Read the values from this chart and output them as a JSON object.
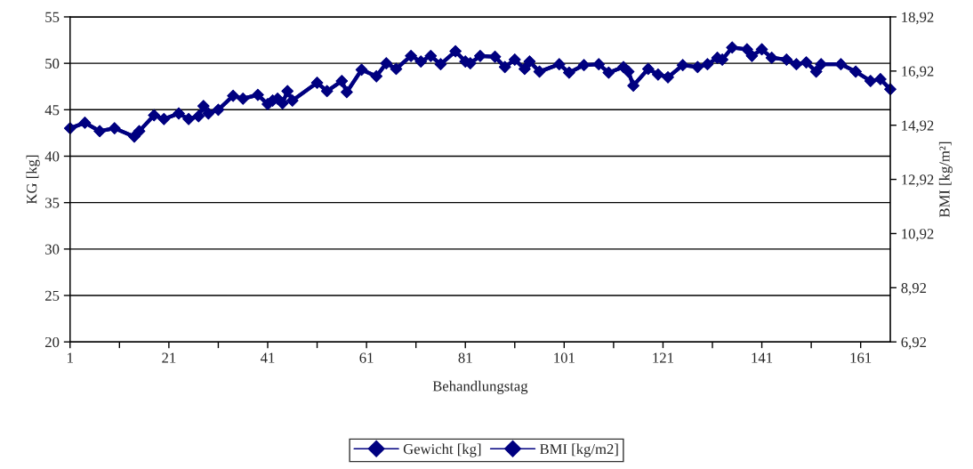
{
  "chart_data": {
    "type": "line",
    "xlabel": "Behandlungstag",
    "ylabel": "KG [kg]",
    "y2label": "BMI [kg/m²]",
    "x": [
      1,
      4,
      7,
      10,
      14,
      15,
      18,
      20,
      23,
      25,
      27,
      28,
      29,
      31,
      34,
      36,
      39,
      41,
      42,
      43,
      44,
      45,
      46,
      51,
      53,
      56,
      57,
      60,
      63,
      65,
      67,
      70,
      72,
      74,
      76,
      79,
      81,
      82,
      84,
      87,
      89,
      91,
      93,
      94,
      96,
      100,
      102,
      105,
      108,
      110,
      113,
      114,
      115,
      118,
      120,
      122,
      125,
      128,
      130,
      132,
      133,
      135,
      138,
      139,
      141,
      143,
      146,
      148,
      150,
      152,
      153,
      157,
      160,
      163,
      165,
      167
    ],
    "series": [
      {
        "name": "Gewicht [kg]",
        "color": "#000080",
        "axis": "y",
        "values": [
          43.0,
          43.6,
          42.7,
          43.0,
          42.1,
          42.7,
          44.4,
          44.0,
          44.6,
          44.0,
          44.3,
          45.4,
          44.6,
          45.0,
          46.5,
          46.2,
          46.6,
          45.6,
          46.0,
          46.2,
          45.7,
          47.0,
          46.0,
          47.9,
          47.0,
          48.1,
          46.9,
          49.3,
          48.6,
          50.0,
          49.4,
          50.8,
          50.2,
          50.8,
          49.9,
          51.3,
          50.2,
          50.0,
          50.8,
          50.7,
          49.6,
          50.4,
          49.4,
          50.2,
          49.1,
          49.9,
          49.0,
          49.8,
          49.9,
          49.0,
          49.6,
          49.1,
          47.6,
          49.4,
          48.8,
          48.5,
          49.8,
          49.6,
          49.9,
          50.6,
          50.4,
          51.7,
          51.5,
          50.8,
          51.5,
          50.6,
          50.4,
          49.9,
          50.1,
          49.1,
          49.9,
          49.9,
          49.1,
          48.1,
          48.3,
          47.2
        ]
      },
      {
        "name": "BMI [kg/m2]",
        "color": "#000080",
        "axis": "y2",
        "values": [
          14.81,
          15.01,
          14.7,
          14.81,
          14.5,
          14.7,
          15.29,
          15.15,
          15.35,
          15.15,
          15.25,
          15.63,
          15.35,
          15.49,
          16.01,
          15.9,
          16.04,
          15.7,
          15.83,
          15.9,
          15.73,
          16.18,
          15.83,
          16.49,
          16.18,
          16.55,
          16.14,
          16.97,
          16.73,
          17.21,
          17.0,
          17.48,
          17.27,
          17.48,
          17.17,
          17.65,
          17.27,
          17.21,
          17.48,
          17.45,
          17.07,
          17.34,
          17.0,
          17.27,
          16.9,
          17.17,
          16.86,
          17.14,
          17.17,
          16.86,
          17.07,
          16.9,
          16.38,
          17.0,
          16.79,
          16.69,
          17.14,
          17.07,
          17.17,
          17.41,
          17.34,
          17.79,
          17.72,
          17.48,
          17.72,
          17.41,
          17.34,
          17.17,
          17.24,
          16.9,
          17.17,
          17.17,
          16.9,
          16.55,
          16.62,
          16.25
        ]
      }
    ],
    "xlim": [
      1,
      167
    ],
    "xticks": [
      1,
      {
        "value": 11,
        "label": null
      },
      21,
      {
        "value": 31,
        "label": null
      },
      41,
      {
        "value": 51,
        "label": null
      },
      61,
      {
        "value": 71,
        "label": null
      },
      81,
      {
        "value": 91,
        "label": null
      },
      101,
      {
        "value": 111,
        "label": null
      },
      121,
      {
        "value": 131,
        "label": null
      },
      141,
      {
        "value": 151,
        "label": null
      },
      161
    ],
    "ylim": [
      20,
      55
    ],
    "yticks": [
      20,
      25,
      30,
      35,
      40,
      45,
      50,
      55
    ],
    "y2lim": [
      6.92,
      18.92
    ],
    "y2ticks": [
      {
        "value": 6.92,
        "label": "6,92"
      },
      {
        "value": 8.92,
        "label": "8,92"
      },
      {
        "value": 10.92,
        "label": "10,92"
      },
      {
        "value": 12.92,
        "label": "12,92"
      },
      {
        "value": 14.92,
        "label": "14,92"
      },
      {
        "value": 16.92,
        "label": "16,92"
      },
      {
        "value": 18.92,
        "label": "18,92"
      }
    ],
    "grid": "y",
    "legend": "bottom",
    "marker": "diamond",
    "line_style": "solid"
  }
}
